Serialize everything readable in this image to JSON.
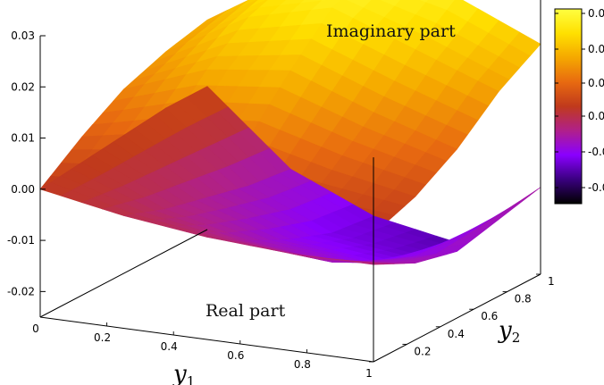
{
  "chart_data": {
    "type": "surface",
    "x_label_var": "y",
    "x_label_sub": "1",
    "y_label_var": "y",
    "y_label_sub": "2",
    "x_ticks": [
      "0",
      "0.2",
      "0.4",
      "0.6",
      "0.8",
      "1"
    ],
    "y_ticks": [
      "0.2",
      "0.4",
      "0.6",
      "0.8",
      "1"
    ],
    "z_ticks": [
      "0.03",
      "0.02",
      "0.01",
      "0.00",
      "-0.01",
      "-0.02"
    ],
    "zlim": [
      -0.025,
      0.03
    ],
    "colorbar_ticks": [
      "0.0",
      "0.0",
      "0.0",
      "0.0",
      "-0.0",
      "-0.0"
    ],
    "colors": {
      "colormap": [
        "#000000",
        "#3a0080",
        "#8a00ff",
        "#b0208a",
        "#c03a1c",
        "#e86a10",
        "#f5a800",
        "#ffe000",
        "#ffff40"
      ]
    },
    "series": [
      {
        "name": "Imaginary part",
        "x": [
          0,
          0.25,
          0.5,
          0.75,
          1
        ],
        "y": [
          0,
          0.25,
          0.5,
          0.75,
          1
        ],
        "z": [
          [
            0.0,
            0.006,
            0.011,
            0.014,
            0.016
          ],
          [
            0.0,
            0.009,
            0.017,
            0.023,
            0.026
          ],
          [
            0.0,
            0.01,
            0.019,
            0.027,
            0.03
          ],
          [
            0.0,
            0.006,
            0.013,
            0.021,
            0.027
          ],
          [
            0.0,
            0.003,
            0.008,
            0.015,
            0.02
          ]
        ]
      },
      {
        "name": "Real part",
        "x": [
          0,
          0.25,
          0.5,
          0.75,
          1
        ],
        "y": [
          0,
          0.25,
          0.5,
          0.75,
          1
        ],
        "z": [
          [
            0.0,
            0.001,
            0.002,
            0.003,
            0.003
          ],
          [
            -0.003,
            -0.006,
            -0.008,
            -0.01,
            -0.011
          ],
          [
            -0.005,
            -0.01,
            -0.014,
            -0.017,
            -0.018
          ],
          [
            -0.006,
            -0.012,
            -0.016,
            -0.019,
            -0.021
          ],
          [
            -0.006,
            -0.01,
            -0.012,
            -0.01,
            -0.008
          ]
        ]
      }
    ]
  }
}
